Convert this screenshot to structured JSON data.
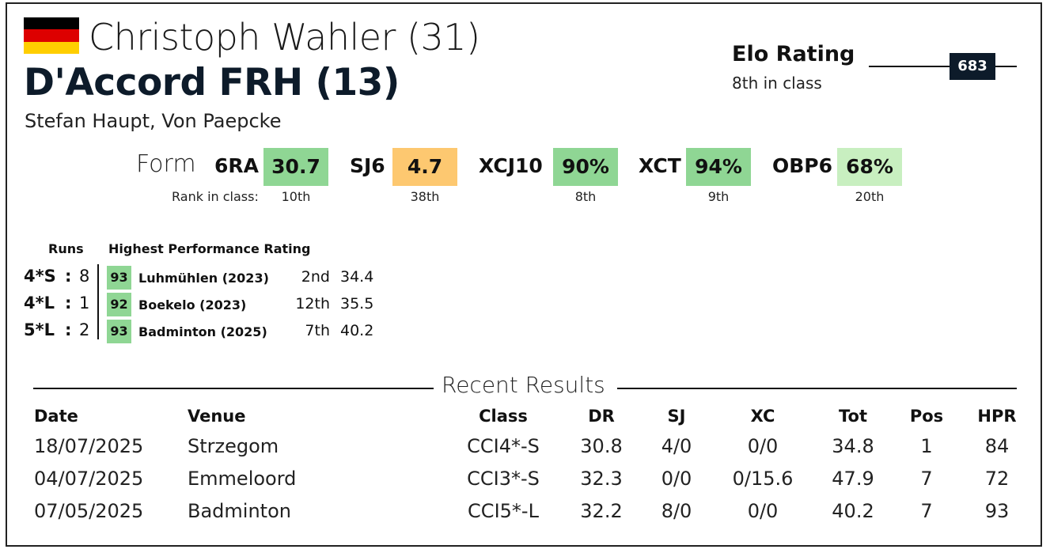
{
  "colors": {
    "flag": [
      "#000000",
      "#dd0000",
      "#ffce00"
    ],
    "navy": "#0d1b2a",
    "green_strong": "#8fd694",
    "green_light": "#c8efc0",
    "orange": "#fdc870"
  },
  "header": {
    "rider": "Christoph Wahler (31)",
    "horse": "D'Accord FRH (13)",
    "owners": "Stefan Haupt, Von Paepcke"
  },
  "elo": {
    "title": "Elo Rating",
    "subtitle": "8th in class",
    "value": "683"
  },
  "form": {
    "label": "Form",
    "rank_label": "Rank in class:",
    "metrics": [
      {
        "name": "6RA",
        "value": "30.7",
        "rank": "10th",
        "color": "#8fd694"
      },
      {
        "name": "SJ6",
        "value": "4.7",
        "rank": "38th",
        "color": "#fdc870"
      },
      {
        "name": "XCJ10",
        "value": "90%",
        "rank": "8th",
        "color": "#8fd694"
      },
      {
        "name": "XCT",
        "value": "94%",
        "rank": "9th",
        "color": "#8fd694"
      },
      {
        "name": "OBP6",
        "value": "68%",
        "rank": "20th",
        "color": "#c8efc0"
      }
    ]
  },
  "runs": {
    "runs_header": "Runs",
    "hpr_header": "Highest Performance Rating",
    "rows": [
      {
        "level": "4*S",
        "colon": ":",
        "count": "8",
        "hpr": "93",
        "event": "Luhmühlen (2023)",
        "pos": "2nd",
        "score": "34.4"
      },
      {
        "level": "4*L",
        "colon": ":",
        "count": "1",
        "hpr": "92",
        "event": "Boekelo (2023)",
        "pos": "12th",
        "score": "35.5"
      },
      {
        "level": "5*L",
        "colon": ":",
        "count": "2",
        "hpr": "93",
        "event": "Badminton (2025)",
        "pos": "7th",
        "score": "40.2"
      }
    ]
  },
  "recent": {
    "title": "Recent Results",
    "columns": [
      "Date",
      "Venue",
      "Class",
      "DR",
      "SJ",
      "XC",
      "Tot",
      "Pos",
      "HPR"
    ],
    "rows": [
      [
        "18/07/2025",
        "Strzegom",
        "CCI4*-S",
        "30.8",
        "4/0",
        "0/0",
        "34.8",
        "1",
        "84"
      ],
      [
        "04/07/2025",
        "Emmeloord",
        "CCI3*-S",
        "32.3",
        "0/0",
        "0/15.6",
        "47.9",
        "7",
        "72"
      ],
      [
        "07/05/2025",
        "Badminton",
        "CCI5*-L",
        "32.2",
        "8/0",
        "0/0",
        "40.2",
        "7",
        "93"
      ]
    ]
  }
}
